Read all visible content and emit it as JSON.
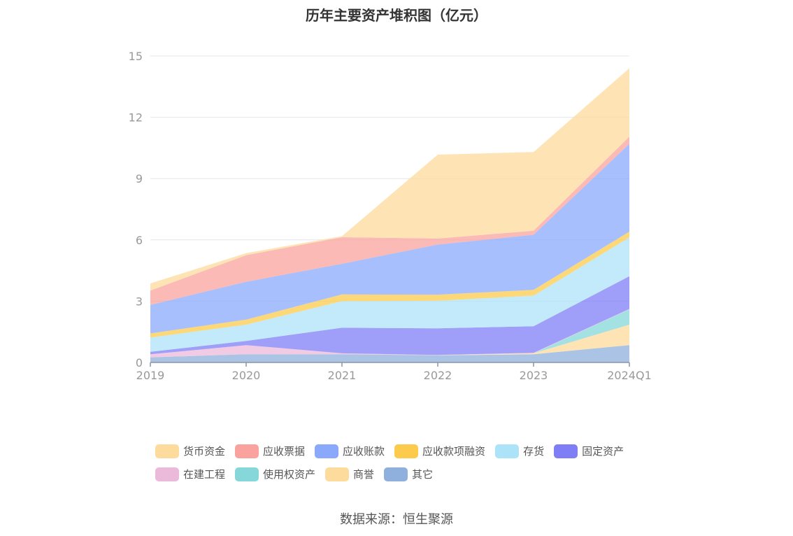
{
  "chart_data": {
    "type": "area",
    "stacked": true,
    "title": "历年主要资产堆积图（亿元）",
    "categories": [
      "2019",
      "2020",
      "2021",
      "2022",
      "2023",
      "2024Q1"
    ],
    "ylim": [
      0,
      15
    ],
    "yticks": [
      0,
      3,
      6,
      9,
      12,
      15
    ],
    "grid": true,
    "legend_position": "bottom",
    "series": [
      {
        "name": "其它",
        "color": "#8fb0dc",
        "values": [
          0.25,
          0.4,
          0.4,
          0.35,
          0.4,
          0.85
        ]
      },
      {
        "name": "商誉",
        "color": "#fddb9c",
        "values": [
          0,
          0,
          0,
          0,
          0.05,
          1.0
        ]
      },
      {
        "name": "使用权资产",
        "color": "#86d7d9",
        "values": [
          0,
          0,
          0,
          0,
          0,
          0.75
        ]
      },
      {
        "name": "在建工程",
        "color": "#ebb9d9",
        "values": [
          0.15,
          0.45,
          0.05,
          0.02,
          0.02,
          0.02
        ]
      },
      {
        "name": "固定资产",
        "color": "#7f7ef5",
        "values": [
          0.12,
          0.2,
          1.25,
          1.3,
          1.3,
          1.6
        ]
      },
      {
        "name": "存货",
        "color": "#ade3f8",
        "values": [
          0.7,
          0.8,
          1.3,
          1.35,
          1.5,
          1.9
        ]
      },
      {
        "name": "应收款项融资",
        "color": "#fccb4c",
        "values": [
          0.2,
          0.25,
          0.33,
          0.3,
          0.28,
          0.28
        ]
      },
      {
        "name": "应收账款",
        "color": "#8aa9fb",
        "values": [
          1.4,
          1.85,
          1.5,
          2.45,
          2.7,
          4.3
        ]
      },
      {
        "name": "应收票据",
        "color": "#faa39e",
        "values": [
          0.7,
          1.3,
          1.3,
          0.3,
          0.2,
          0.35
        ]
      },
      {
        "name": "货币资金",
        "color": "#fddb9c",
        "values": [
          0.35,
          0.1,
          0.05,
          4.1,
          3.85,
          3.35
        ]
      }
    ]
  },
  "legend": {
    "rows": [
      [
        {
          "label": "货币资金",
          "color": "#fddb9c"
        },
        {
          "label": "应收票据",
          "color": "#faa39e"
        },
        {
          "label": "应收账款",
          "color": "#8aa9fb"
        },
        {
          "label": "应收款项融资",
          "color": "#fccb4c"
        },
        {
          "label": "存货",
          "color": "#ade3f8"
        },
        {
          "label": "固定资产",
          "color": "#7f7ef5"
        }
      ],
      [
        {
          "label": "在建工程",
          "color": "#ebb9d9"
        },
        {
          "label": "使用权资产",
          "color": "#86d7d9"
        },
        {
          "label": "商誉",
          "color": "#fddb9c"
        },
        {
          "label": "其它",
          "color": "#8fb0dc"
        }
      ]
    ]
  },
  "source": "数据来源：恒生聚源"
}
